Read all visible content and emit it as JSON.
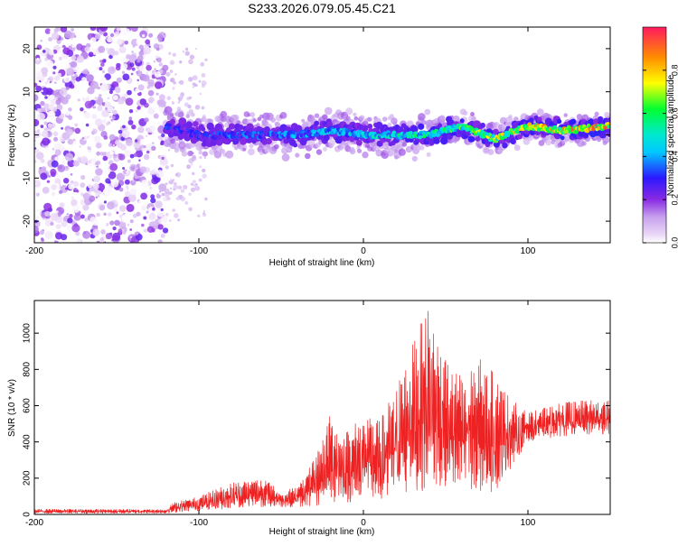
{
  "title": "S233.2026.079.05.45.C21",
  "chart_data": [
    {
      "type": "heatmap",
      "xlabel": "Height of straight line (km)",
      "ylabel": "Frequency (Hz)",
      "xlim": [
        -200,
        150
      ],
      "ylim": [
        -25,
        25
      ],
      "xticks": [
        -200,
        -100,
        0,
        100
      ],
      "yticks": [
        -20,
        -10,
        0,
        10,
        20
      ],
      "colorbar": {
        "label": "Normalized spectral amplitude",
        "range": [
          0.0,
          1.0
        ],
        "ticks": [
          "0.0",
          "0.2",
          "0.4",
          "0.6",
          "0.8"
        ],
        "colors": [
          "#ffffff",
          "#d9b8f2",
          "#8a2be2",
          "#0000ff",
          "#00e5ff",
          "#00ff40",
          "#ffff00",
          "#ff8c00",
          "#ff1a55"
        ]
      },
      "noise_region_km": [
        -200,
        -120
      ],
      "ridge": {
        "height_km": [
          -120,
          -100,
          -80,
          -60,
          -40,
          -20,
          0,
          20,
          40,
          60,
          80,
          100,
          120,
          150
        ],
        "frequency_hz": [
          2,
          0,
          0,
          0,
          0,
          1,
          0,
          0,
          0,
          2,
          -1,
          2,
          1,
          2
        ],
        "peak_amplitude": [
          0.35,
          0.35,
          0.4,
          0.4,
          0.45,
          0.5,
          0.55,
          0.6,
          0.65,
          0.7,
          0.8,
          0.85,
          0.95,
          0.95
        ]
      }
    },
    {
      "type": "line",
      "xlabel": "Height of straight line (km)",
      "ylabel": "SNR (10 * v/v)",
      "xlim": [
        -200,
        150
      ],
      "ylim": [
        0,
        1180
      ],
      "xticks": [
        -200,
        -100,
        0,
        100
      ],
      "yticks": [
        0,
        200,
        400,
        600,
        800,
        1000
      ],
      "line_color": "#ee2222",
      "envelope": {
        "height_km": [
          -200,
          -120,
          -115,
          -100,
          -80,
          -60,
          -50,
          -40,
          -30,
          -20,
          -10,
          0,
          10,
          20,
          30,
          40,
          50,
          60,
          70,
          80,
          90,
          100,
          120,
          150
        ],
        "snr_upper": [
          30,
          30,
          70,
          100,
          180,
          210,
          120,
          160,
          300,
          560,
          470,
          560,
          520,
          720,
          950,
          1170,
          850,
          780,
          870,
          780,
          640,
          560,
          620,
          640
        ],
        "snr_lower": [
          5,
          5,
          10,
          20,
          30,
          40,
          40,
          40,
          40,
          60,
          60,
          80,
          60,
          80,
          120,
          120,
          150,
          100,
          120,
          120,
          250,
          400,
          430,
          440
        ]
      }
    }
  ]
}
